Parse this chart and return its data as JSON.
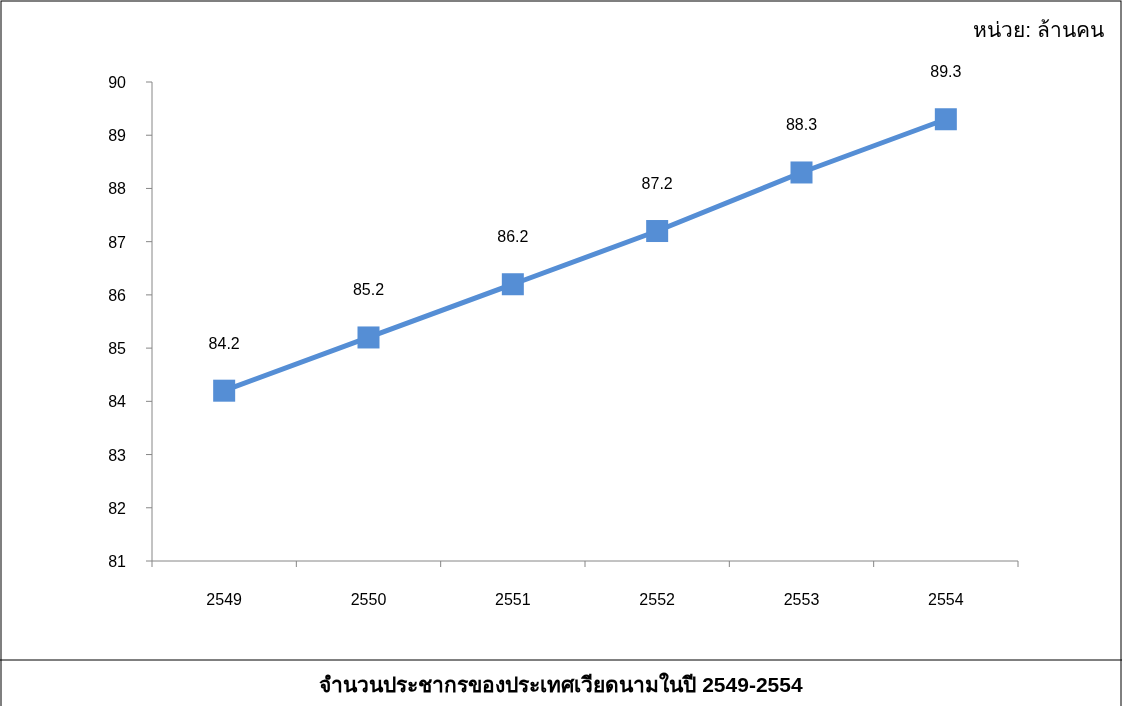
{
  "chart_data": {
    "type": "line",
    "title": "จำนวนประชากรของประเทศเวียดนามในปี 2549-2554",
    "annotations": [
      "หน่วย: ล้านคน"
    ],
    "categories": [
      "2549",
      "2550",
      "2551",
      "2552",
      "2553",
      "2554"
    ],
    "series": [
      {
        "color": "#558ed5",
        "values": [
          84.2,
          85.2,
          86.2,
          87.2,
          88.3,
          89.3
        ]
      }
    ],
    "ylim": [
      81,
      90
    ],
    "yticks": [
      81,
      82,
      83,
      84,
      85,
      86,
      87,
      88,
      89,
      90
    ],
    "marker": "square",
    "line_style": "solid",
    "data_labels": true
  }
}
